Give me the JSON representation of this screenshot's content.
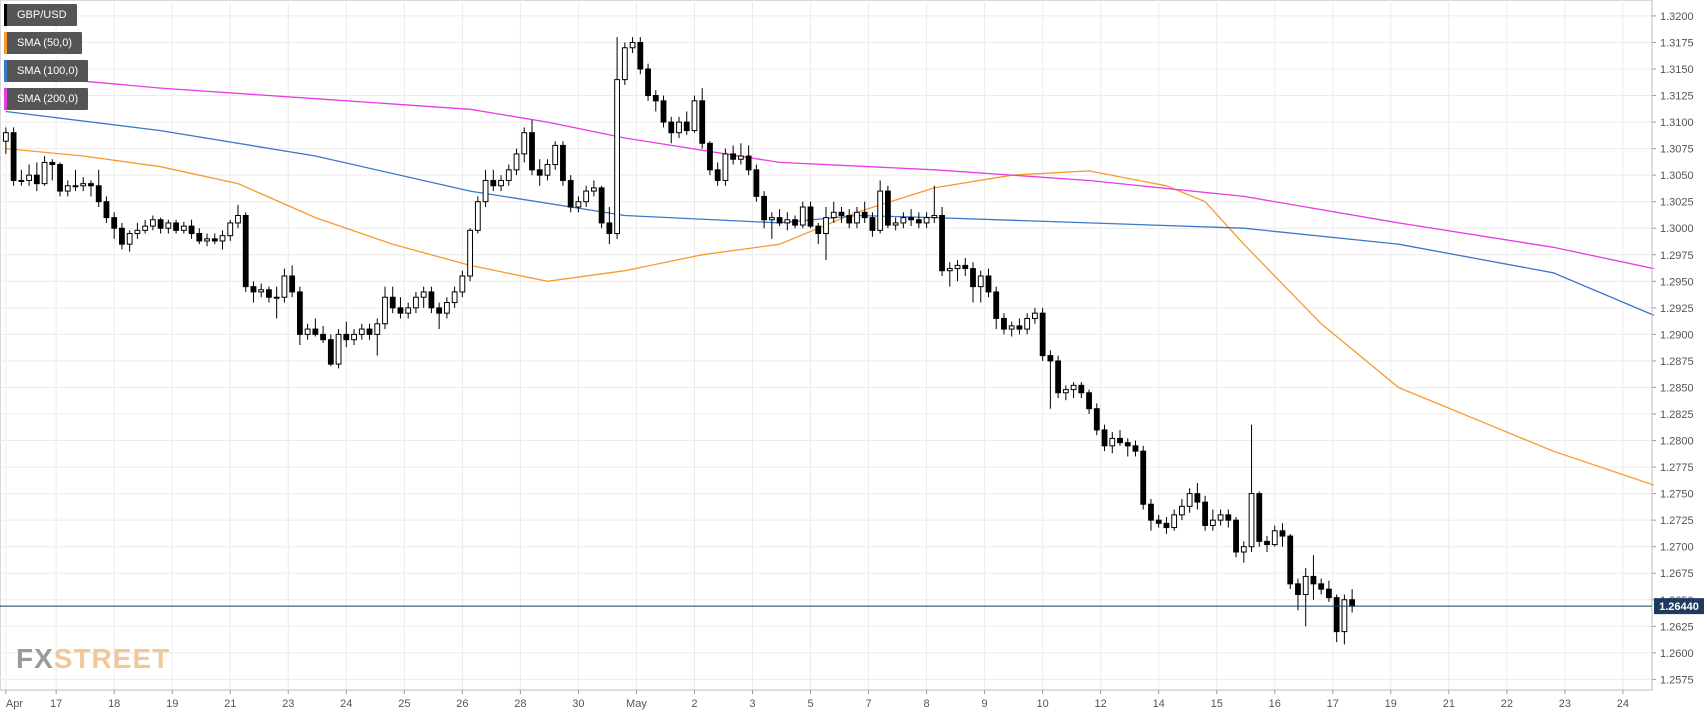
{
  "legend": {
    "items": [
      {
        "label": "GBP/USD",
        "color": "#000000"
      },
      {
        "label": "SMA (50,0)",
        "color": "#f79a2e"
      },
      {
        "label": "SMA (100,0)",
        "color": "#3c78c8"
      },
      {
        "label": "SMA (200,0)",
        "color": "#e53ce5"
      }
    ]
  },
  "logo": {
    "fx": "FX",
    "street": "STREET"
  },
  "chart_data": {
    "type": "candlestick",
    "symbol": "GBP/USD",
    "timeframe": "4H",
    "ylim": [
      1.2565,
      1.3215
    ],
    "y_ticks": [
      "1.2575",
      "1.2600",
      "1.2625",
      "1.2650",
      "1.2675",
      "1.2700",
      "1.2725",
      "1.2750",
      "1.2775",
      "1.2800",
      "1.2825",
      "1.2850",
      "1.2875",
      "1.2900",
      "1.2925",
      "1.2950",
      "1.2975",
      "1.3000",
      "1.3025",
      "1.3050",
      "1.3075",
      "1.3100",
      "1.3125",
      "1.3150",
      "1.3175",
      "1.3200"
    ],
    "x_labels": [
      {
        "label": "Apr",
        "idx": 0
      },
      {
        "label": "17",
        "idx": 6.5
      },
      {
        "label": "18",
        "idx": 14
      },
      {
        "label": "19",
        "idx": 21.5
      },
      {
        "label": "21",
        "idx": 29
      },
      {
        "label": "23",
        "idx": 36.5
      },
      {
        "label": "24",
        "idx": 44
      },
      {
        "label": "25",
        "idx": 51.5
      },
      {
        "label": "26",
        "idx": 59
      },
      {
        "label": "28",
        "idx": 66.5
      },
      {
        "label": "30",
        "idx": 74
      },
      {
        "label": "May",
        "idx": 81.5
      },
      {
        "label": "2",
        "idx": 89
      },
      {
        "label": "3",
        "idx": 96.5
      },
      {
        "label": "5",
        "idx": 104
      },
      {
        "label": "7",
        "idx": 111.5
      },
      {
        "label": "8",
        "idx": 119
      },
      {
        "label": "9",
        "idx": 126.5
      },
      {
        "label": "10",
        "idx": 134
      },
      {
        "label": "12",
        "idx": 141.5
      },
      {
        "label": "14",
        "idx": 149
      },
      {
        "label": "15",
        "idx": 156.5
      },
      {
        "label": "16",
        "idx": 164
      },
      {
        "label": "17",
        "idx": 171.5
      },
      {
        "label": "19",
        "idx": 179
      },
      {
        "label": "21",
        "idx": 186.5
      },
      {
        "label": "22",
        "idx": 194
      },
      {
        "label": "23",
        "idx": 201.5
      },
      {
        "label": "24",
        "idx": 209
      }
    ],
    "current_price": {
      "value": 1.2644,
      "label": "1.26440"
    },
    "candles": [
      [
        1.3082,
        1.3095,
        1.307,
        1.309
      ],
      [
        1.309,
        1.3095,
        1.304,
        1.3045
      ],
      [
        1.3045,
        1.3055,
        1.304,
        1.3045
      ],
      [
        1.3045,
        1.306,
        1.304,
        1.305
      ],
      [
        1.305,
        1.3062,
        1.3035,
        1.3042
      ],
      [
        1.3042,
        1.3068,
        1.304,
        1.3062
      ],
      [
        1.3062,
        1.3065,
        1.3045,
        1.306
      ],
      [
        1.306,
        1.3062,
        1.303,
        1.3035
      ],
      [
        1.3035,
        1.3045,
        1.303,
        1.304
      ],
      [
        1.304,
        1.3055,
        1.3035,
        1.304
      ],
      [
        1.304,
        1.3048,
        1.3035,
        1.3042
      ],
      [
        1.3042,
        1.3045,
        1.303,
        1.304
      ],
      [
        1.304,
        1.3055,
        1.302,
        1.3025
      ],
      [
        1.3025,
        1.303,
        1.3005,
        1.301
      ],
      [
        1.301,
        1.3015,
        1.299,
        1.3
      ],
      [
        1.3,
        1.3005,
        1.298,
        1.2985
      ],
      [
        1.2985,
        1.2998,
        1.2978,
        1.2995
      ],
      [
        1.2995,
        1.3005,
        1.299,
        1.2998
      ],
      [
        1.2998,
        1.3008,
        1.2995,
        1.3002
      ],
      [
        1.3002,
        1.3012,
        1.2998,
        1.3008
      ],
      [
        1.3008,
        1.301,
        1.2995,
        1.3
      ],
      [
        1.3,
        1.3008,
        1.2995,
        1.3005
      ],
      [
        1.3005,
        1.3008,
        1.2995,
        1.2998
      ],
      [
        1.2998,
        1.3006,
        1.2995,
        1.3002
      ],
      [
        1.3002,
        1.3008,
        1.299,
        1.2995
      ],
      [
        1.2995,
        1.3,
        1.2985,
        1.2988
      ],
      [
        1.2988,
        1.2995,
        1.2983,
        1.299
      ],
      [
        1.299,
        1.2995,
        1.2985,
        1.2988
      ],
      [
        1.2988,
        1.2998,
        1.298,
        1.2993
      ],
      [
        1.2993,
        1.3008,
        1.2988,
        1.3005
      ],
      [
        1.3005,
        1.3022,
        1.3,
        1.3012
      ],
      [
        1.3012,
        1.3015,
        1.294,
        1.2945
      ],
      [
        1.2945,
        1.295,
        1.293,
        1.294
      ],
      [
        1.294,
        1.2948,
        1.2935,
        1.2942
      ],
      [
        1.2942,
        1.2945,
        1.293,
        1.2935
      ],
      [
        1.2935,
        1.2945,
        1.2915,
        1.2935
      ],
      [
        1.2935,
        1.2962,
        1.293,
        1.2955
      ],
      [
        1.2955,
        1.2965,
        1.2935,
        1.294
      ],
      [
        1.294,
        1.2945,
        1.289,
        1.29
      ],
      [
        1.29,
        1.291,
        1.2895,
        1.2905
      ],
      [
        1.2905,
        1.2915,
        1.2898,
        1.29
      ],
      [
        1.29,
        1.2908,
        1.2892,
        1.2895
      ],
      [
        1.2895,
        1.29,
        1.287,
        1.2872
      ],
      [
        1.2872,
        1.2905,
        1.2868,
        1.29
      ],
      [
        1.29,
        1.2912,
        1.2888,
        1.2895
      ],
      [
        1.2895,
        1.2905,
        1.289,
        1.29
      ],
      [
        1.29,
        1.291,
        1.2895,
        1.2905
      ],
      [
        1.2905,
        1.291,
        1.2895,
        1.29
      ],
      [
        1.29,
        1.2915,
        1.288,
        1.291
      ],
      [
        1.291,
        1.2945,
        1.2905,
        1.2935
      ],
      [
        1.2935,
        1.2945,
        1.292,
        1.2925
      ],
      [
        1.2925,
        1.2935,
        1.2915,
        1.292
      ],
      [
        1.292,
        1.293,
        1.2915,
        1.2925
      ],
      [
        1.2925,
        1.294,
        1.292,
        1.2935
      ],
      [
        1.2935,
        1.2945,
        1.2925,
        1.294
      ],
      [
        1.294,
        1.2945,
        1.292,
        1.2925
      ],
      [
        1.2925,
        1.293,
        1.2905,
        1.292
      ],
      [
        1.292,
        1.2935,
        1.2915,
        1.293
      ],
      [
        1.293,
        1.2945,
        1.2925,
        1.294
      ],
      [
        1.294,
        1.296,
        1.2935,
        1.2955
      ],
      [
        1.2955,
        1.3,
        1.295,
        1.2998
      ],
      [
        1.2998,
        1.303,
        1.2995,
        1.3025
      ],
      [
        1.3025,
        1.3055,
        1.302,
        1.3045
      ],
      [
        1.3045,
        1.3055,
        1.3035,
        1.304
      ],
      [
        1.304,
        1.305,
        1.3035,
        1.3045
      ],
      [
        1.3045,
        1.306,
        1.304,
        1.3055
      ],
      [
        1.3055,
        1.3075,
        1.305,
        1.307
      ],
      [
        1.307,
        1.3095,
        1.3062,
        1.309
      ],
      [
        1.309,
        1.3102,
        1.305,
        1.3055
      ],
      [
        1.3055,
        1.3065,
        1.304,
        1.305
      ],
      [
        1.305,
        1.3065,
        1.3045,
        1.306
      ],
      [
        1.306,
        1.3082,
        1.3055,
        1.3078
      ],
      [
        1.3078,
        1.3082,
        1.304,
        1.3045
      ],
      [
        1.3045,
        1.305,
        1.3015,
        1.302
      ],
      [
        1.302,
        1.303,
        1.3015,
        1.3025
      ],
      [
        1.3025,
        1.304,
        1.302,
        1.3035
      ],
      [
        1.3035,
        1.3045,
        1.303,
        1.3038
      ],
      [
        1.3038,
        1.304,
        1.3,
        1.3005
      ],
      [
        1.3005,
        1.302,
        1.2985,
        1.2995
      ],
      [
        1.2995,
        1.318,
        1.299,
        1.314
      ],
      [
        1.314,
        1.3175,
        1.3135,
        1.317
      ],
      [
        1.317,
        1.318,
        1.3165,
        1.3175
      ],
      [
        1.3175,
        1.318,
        1.3145,
        1.315
      ],
      [
        1.315,
        1.3155,
        1.312,
        1.3125
      ],
      [
        1.3125,
        1.313,
        1.311,
        1.312
      ],
      [
        1.312,
        1.3125,
        1.3095,
        1.31
      ],
      [
        1.31,
        1.3105,
        1.308,
        1.309
      ],
      [
        1.309,
        1.3105,
        1.3085,
        1.31
      ],
      [
        1.31,
        1.311,
        1.3088,
        1.3092
      ],
      [
        1.3092,
        1.3125,
        1.309,
        1.312
      ],
      [
        1.312,
        1.3132,
        1.3075,
        1.308
      ],
      [
        1.308,
        1.3082,
        1.305,
        1.3055
      ],
      [
        1.3055,
        1.3062,
        1.304,
        1.3045
      ],
      [
        1.3045,
        1.3075,
        1.304,
        1.307
      ],
      [
        1.307,
        1.3078,
        1.306,
        1.3065
      ],
      [
        1.3065,
        1.308,
        1.306,
        1.3068
      ],
      [
        1.3068,
        1.3078,
        1.305,
        1.3055
      ],
      [
        1.3055,
        1.306,
        1.3025,
        1.303
      ],
      [
        1.303,
        1.3035,
        1.3,
        1.3008
      ],
      [
        1.3008,
        1.3015,
        1.299,
        1.301
      ],
      [
        1.301,
        1.3018,
        1.3002,
        1.3005
      ],
      [
        1.3005,
        1.3015,
        1.2998,
        1.3008
      ],
      [
        1.3008,
        1.3012,
        1.3,
        1.3003
      ],
      [
        1.3003,
        1.3025,
        1.3,
        1.302
      ],
      [
        1.302,
        1.3025,
        1.3,
        1.3002
      ],
      [
        1.3002,
        1.3005,
        1.2985,
        1.2995
      ],
      [
        1.2995,
        1.302,
        1.297,
        1.301
      ],
      [
        1.301,
        1.3025,
        1.3005,
        1.3015
      ],
      [
        1.3015,
        1.302,
        1.3005,
        1.3012
      ],
      [
        1.3012,
        1.3018,
        1.3,
        1.3005
      ],
      [
        1.3005,
        1.302,
        1.3,
        1.3015
      ],
      [
        1.3015,
        1.3025,
        1.3005,
        1.301
      ],
      [
        1.301,
        1.3015,
        1.2992,
        1.2998
      ],
      [
        1.2998,
        1.3045,
        1.2995,
        1.3035
      ],
      [
        1.3035,
        1.304,
        1.3,
        1.3003
      ],
      [
        1.3003,
        1.301,
        1.2998,
        1.3005
      ],
      [
        1.3005,
        1.3015,
        1.3,
        1.301
      ],
      [
        1.301,
        1.3018,
        1.3002,
        1.3008
      ],
      [
        1.3008,
        1.3015,
        1.3,
        1.3005
      ],
      [
        1.3005,
        1.3015,
        1.3,
        1.301
      ],
      [
        1.301,
        1.304,
        1.3005,
        1.3012
      ],
      [
        1.3012,
        1.302,
        1.2955,
        1.296
      ],
      [
        1.296,
        1.2968,
        1.2945,
        1.2962
      ],
      [
        1.2962,
        1.297,
        1.295,
        1.2965
      ],
      [
        1.2965,
        1.2972,
        1.2955,
        1.2962
      ],
      [
        1.2962,
        1.2968,
        1.293,
        1.2945
      ],
      [
        1.2945,
        1.296,
        1.293,
        1.2955
      ],
      [
        1.2955,
        1.2962,
        1.2935,
        1.294
      ],
      [
        1.294,
        1.2945,
        1.2905,
        1.2915
      ],
      [
        1.2915,
        1.292,
        1.29,
        1.2905
      ],
      [
        1.2905,
        1.2912,
        1.2898,
        1.2908
      ],
      [
        1.2908,
        1.2915,
        1.29,
        1.2905
      ],
      [
        1.2905,
        1.292,
        1.29,
        1.2915
      ],
      [
        1.2915,
        1.2925,
        1.291,
        1.292
      ],
      [
        1.292,
        1.2925,
        1.2875,
        1.288
      ],
      [
        1.288,
        1.2885,
        1.283,
        1.2875
      ],
      [
        1.2875,
        1.288,
        1.284,
        1.2845
      ],
      [
        1.2845,
        1.2852,
        1.2838,
        1.2848
      ],
      [
        1.2848,
        1.2855,
        1.284,
        1.2852
      ],
      [
        1.2852,
        1.2855,
        1.284,
        1.2845
      ],
      [
        1.2845,
        1.2848,
        1.2825,
        1.283
      ],
      [
        1.283,
        1.2835,
        1.2805,
        1.281
      ],
      [
        1.281,
        1.2815,
        1.279,
        1.2795
      ],
      [
        1.2795,
        1.2808,
        1.2788,
        1.2802
      ],
      [
        1.2802,
        1.281,
        1.2795,
        1.2798
      ],
      [
        1.2798,
        1.2802,
        1.2785,
        1.2795
      ],
      [
        1.2795,
        1.28,
        1.2785,
        1.279
      ],
      [
        1.279,
        1.2795,
        1.2735,
        1.274
      ],
      [
        1.274,
        1.2745,
        1.2715,
        1.2725
      ],
      [
        1.2725,
        1.273,
        1.2718,
        1.2722
      ],
      [
        1.2722,
        1.2728,
        1.2712,
        1.2718
      ],
      [
        1.2718,
        1.2735,
        1.2715,
        1.273
      ],
      [
        1.273,
        1.2745,
        1.2725,
        1.2738
      ],
      [
        1.2738,
        1.2755,
        1.2732,
        1.275
      ],
      [
        1.275,
        1.276,
        1.2735,
        1.2742
      ],
      [
        1.2742,
        1.2748,
        1.2715,
        1.272
      ],
      [
        1.272,
        1.2735,
        1.2715,
        1.2725
      ],
      [
        1.2725,
        1.2735,
        1.272,
        1.273
      ],
      [
        1.273,
        1.2735,
        1.2718,
        1.2725
      ],
      [
        1.2725,
        1.2728,
        1.269,
        1.2695
      ],
      [
        1.2695,
        1.2705,
        1.2685,
        1.27
      ],
      [
        1.27,
        1.2815,
        1.2695,
        1.275
      ],
      [
        1.275,
        1.2752,
        1.27,
        1.2705
      ],
      [
        1.2705,
        1.271,
        1.2695,
        1.2702
      ],
      [
        1.2702,
        1.272,
        1.27,
        1.2715
      ],
      [
        1.2715,
        1.2722,
        1.27,
        1.271
      ],
      [
        1.271,
        1.2712,
        1.266,
        1.2665
      ],
      [
        1.2665,
        1.267,
        1.264,
        1.2655
      ],
      [
        1.2655,
        1.268,
        1.2625,
        1.2672
      ],
      [
        1.2672,
        1.2692,
        1.265,
        1.2665
      ],
      [
        1.2665,
        1.267,
        1.2655,
        1.266
      ],
      [
        1.266,
        1.2668,
        1.2648,
        1.2652
      ],
      [
        1.2652,
        1.2655,
        1.261,
        1.262
      ],
      [
        1.262,
        1.2655,
        1.2608,
        1.265
      ],
      [
        1.265,
        1.266,
        1.2638,
        1.2644
      ]
    ],
    "sma_50": [
      [
        0,
        1.3075
      ],
      [
        10,
        1.3068
      ],
      [
        20,
        1.3058
      ],
      [
        30,
        1.3042
      ],
      [
        40,
        1.301
      ],
      [
        50,
        1.2985
      ],
      [
        60,
        1.2965
      ],
      [
        70,
        1.295
      ],
      [
        80,
        1.296
      ],
      [
        90,
        1.2975
      ],
      [
        100,
        1.2985
      ],
      [
        110,
        1.3015
      ],
      [
        120,
        1.3038
      ],
      [
        130,
        1.305
      ],
      [
        140,
        1.3054
      ],
      [
        150,
        1.304
      ],
      [
        155,
        1.3025
      ],
      [
        160,
        1.2985
      ],
      [
        170,
        1.291
      ],
      [
        180,
        1.285
      ],
      [
        190,
        1.282
      ],
      [
        200,
        1.279
      ],
      [
        213,
        1.2758
      ]
    ],
    "sma_100": [
      [
        0,
        1.311
      ],
      [
        20,
        1.3092
      ],
      [
        40,
        1.3068
      ],
      [
        60,
        1.3035
      ],
      [
        80,
        1.3012
      ],
      [
        100,
        1.3005
      ],
      [
        110,
        1.3012
      ],
      [
        120,
        1.301
      ],
      [
        140,
        1.3005
      ],
      [
        160,
        1.3
      ],
      [
        180,
        1.2985
      ],
      [
        200,
        1.2958
      ],
      [
        213,
        1.2918
      ]
    ],
    "sma_200": [
      [
        0,
        1.3145
      ],
      [
        20,
        1.3132
      ],
      [
        40,
        1.3122
      ],
      [
        60,
        1.3112
      ],
      [
        70,
        1.31
      ],
      [
        80,
        1.3085
      ],
      [
        100,
        1.3062
      ],
      [
        120,
        1.3055
      ],
      [
        140,
        1.3045
      ],
      [
        160,
        1.303
      ],
      [
        180,
        1.3005
      ],
      [
        200,
        1.2982
      ],
      [
        213,
        1.2962
      ]
    ]
  }
}
